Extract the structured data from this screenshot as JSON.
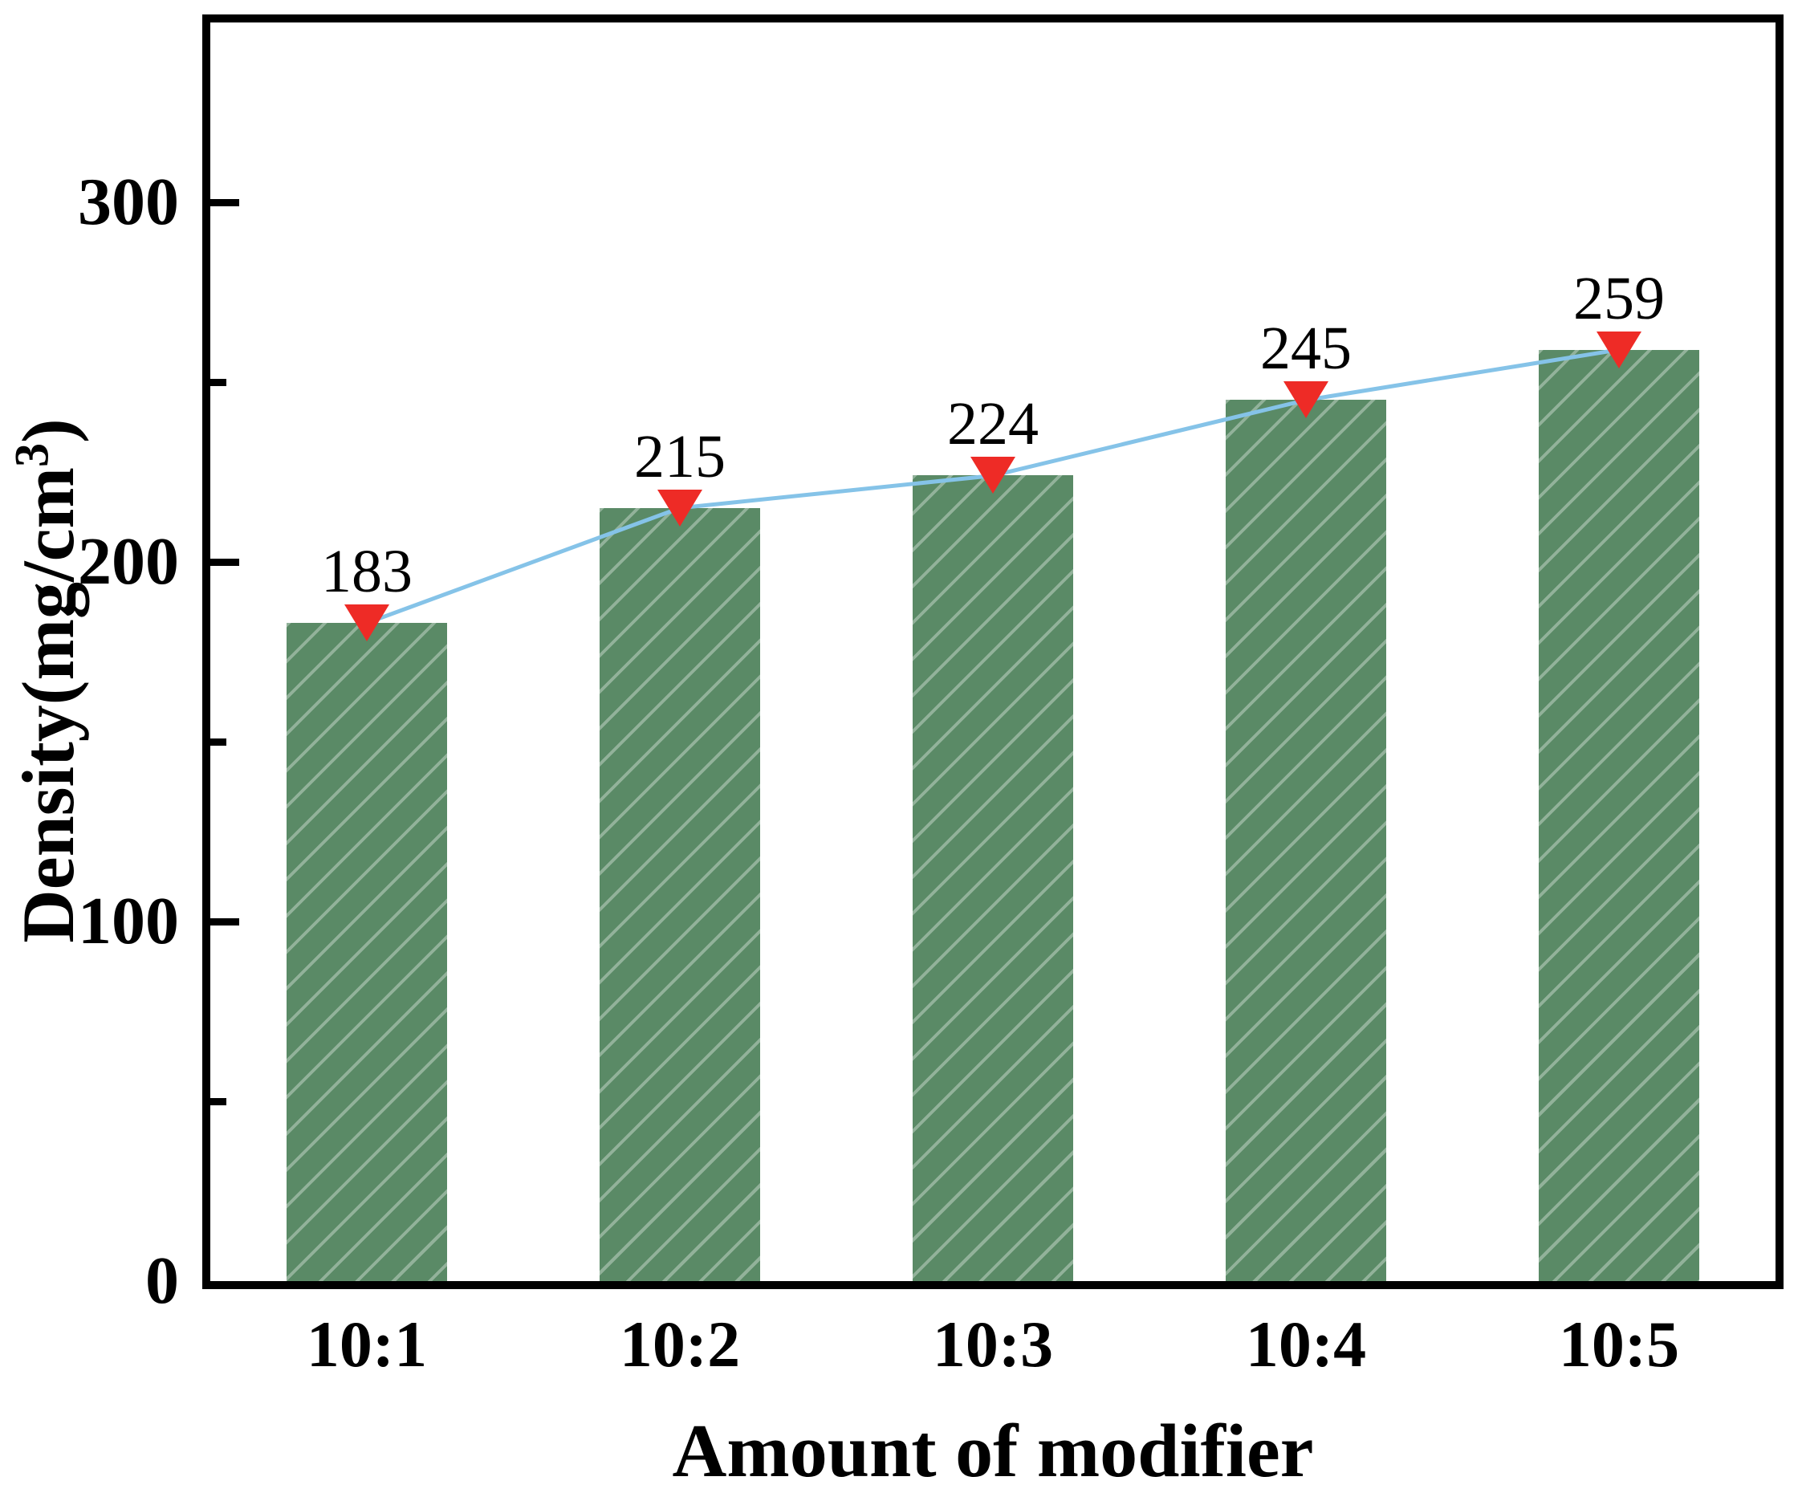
{
  "chart_data": {
    "type": "bar",
    "title": "",
    "xlabel": "Amount of modifier",
    "ylabel": "Density(mg/cm³)",
    "ylabel_parts": {
      "pre": "Density(mg/cm",
      "sup": "3",
      "post": ")"
    },
    "categories": [
      "10:1",
      "10:2",
      "10:3",
      "10:4",
      "10:5"
    ],
    "values": [
      183,
      215,
      224,
      245,
      259
    ],
    "bar_value_labels": [
      "183",
      "215",
      "224",
      "245",
      "259"
    ],
    "series": [
      {
        "name": "density-bars",
        "type": "bar",
        "values": [
          183,
          215,
          224,
          245,
          259
        ]
      },
      {
        "name": "density-line",
        "type": "line",
        "values": [
          183,
          215,
          224,
          245,
          259
        ]
      }
    ],
    "ylim": [
      0,
      350
    ],
    "y_axis": {
      "major_ticks": [
        {
          "value": 0,
          "label": "0"
        },
        {
          "value": 100,
          "label": "100"
        },
        {
          "value": 200,
          "label": "200"
        },
        {
          "value": 300,
          "label": "300"
        }
      ],
      "minor_ticks": [
        50,
        150,
        250
      ]
    },
    "legend": "none",
    "grid": "off",
    "colors": {
      "bar_fill": "#5a8a66",
      "bar_hatch": "rgba(255,255,255,0.34)",
      "line": "#85c3e8",
      "marker": "#ee2b26",
      "axis": "#000000",
      "text": "#000000",
      "background": "#ffffff"
    },
    "marker_shape": "triangle-down"
  }
}
